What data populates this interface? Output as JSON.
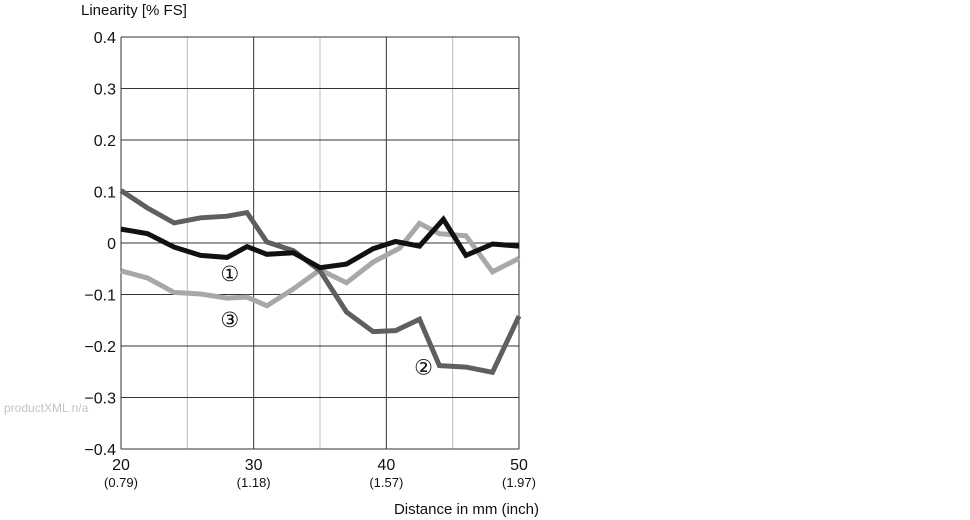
{
  "chart_data": {
    "type": "line",
    "ylabel": "Linearity [% FS]",
    "xlabel": "Distance in mm (inch)",
    "xlim": [
      20,
      50
    ],
    "ylim": [
      -0.4,
      0.4
    ],
    "x_ticks": [
      {
        "value": 20,
        "label": "20",
        "sub": "(0.79)"
      },
      {
        "value": 30,
        "label": "30",
        "sub": "(1.18)"
      },
      {
        "value": 40,
        "label": "40",
        "sub": "(1.57)"
      },
      {
        "value": 50,
        "label": "50",
        "sub": "(1.97)"
      }
    ],
    "x_minor_ticks": [
      25,
      35,
      45
    ],
    "y_ticks": [
      {
        "value": 0.4,
        "label": "0.4"
      },
      {
        "value": 0.3,
        "label": "0.3"
      },
      {
        "value": 0.2,
        "label": "0.2"
      },
      {
        "value": 0.1,
        "label": "0.1"
      },
      {
        "value": 0,
        "label": "0"
      },
      {
        "value": -0.1,
        "label": "−0.1"
      },
      {
        "value": -0.2,
        "label": "−0.2"
      },
      {
        "value": -0.3,
        "label": "−0.3"
      },
      {
        "value": -0.4,
        "label": "−0.4"
      }
    ],
    "grid": true,
    "series": [
      {
        "marker": "①",
        "color": "#111111",
        "marker_pos": {
          "x": 28.2,
          "y": -0.058
        },
        "points": [
          [
            20,
            0.027
          ],
          [
            22,
            0.018
          ],
          [
            24,
            -0.008
          ],
          [
            26,
            -0.024
          ],
          [
            28,
            -0.028
          ],
          [
            29.5,
            -0.007
          ],
          [
            31,
            -0.022
          ],
          [
            33,
            -0.019
          ],
          [
            35,
            -0.048
          ],
          [
            37,
            -0.041
          ],
          [
            39,
            -0.011
          ],
          [
            40.7,
            0.003
          ],
          [
            42.5,
            -0.006
          ],
          [
            44.3,
            0.046
          ],
          [
            46,
            -0.024
          ],
          [
            48,
            -0.002
          ],
          [
            50,
            -0.006
          ]
        ]
      },
      {
        "marker": "②",
        "color": "#5f5f5f",
        "marker_pos": {
          "x": 42.8,
          "y": -0.24
        },
        "points": [
          [
            20,
            0.102
          ],
          [
            22,
            0.068
          ],
          [
            24,
            0.039
          ],
          [
            26,
            0.049
          ],
          [
            28,
            0.052
          ],
          [
            29.5,
            0.059
          ],
          [
            31,
            0.002
          ],
          [
            33,
            -0.015
          ],
          [
            35,
            -0.054
          ],
          [
            37,
            -0.134
          ],
          [
            39,
            -0.172
          ],
          [
            40.7,
            -0.17
          ],
          [
            42.5,
            -0.148
          ],
          [
            44,
            -0.238
          ],
          [
            46,
            -0.241
          ],
          [
            48,
            -0.251
          ],
          [
            50,
            -0.142
          ]
        ]
      },
      {
        "marker": "③",
        "color": "#a8a8a8",
        "marker_pos": {
          "x": 28.2,
          "y": -0.148
        },
        "points": [
          [
            20,
            -0.054
          ],
          [
            22,
            -0.068
          ],
          [
            24,
            -0.096
          ],
          [
            26,
            -0.099
          ],
          [
            28,
            -0.107
          ],
          [
            29.5,
            -0.105
          ],
          [
            31,
            -0.122
          ],
          [
            33,
            -0.089
          ],
          [
            35,
            -0.052
          ],
          [
            37,
            -0.077
          ],
          [
            39,
            -0.037
          ],
          [
            41,
            -0.01
          ],
          [
            42.5,
            0.038
          ],
          [
            44,
            0.018
          ],
          [
            46,
            0.014
          ],
          [
            48,
            -0.056
          ],
          [
            50,
            -0.03
          ]
        ]
      }
    ]
  },
  "watermark": "productXML n/a"
}
